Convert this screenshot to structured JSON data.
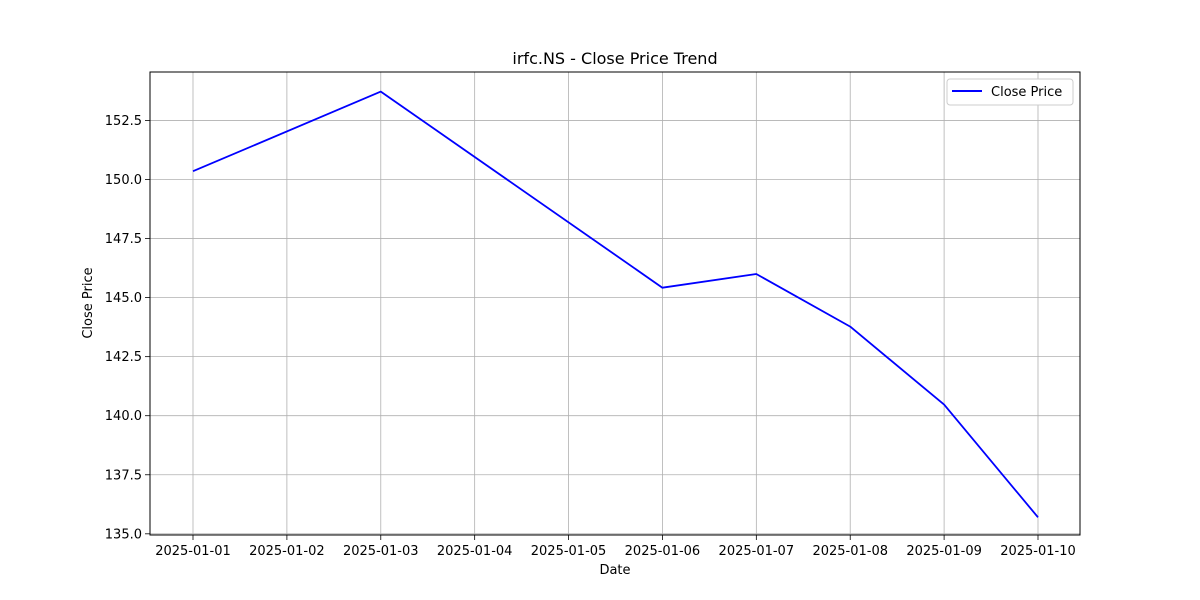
{
  "chart_data": {
    "type": "line",
    "title": "irfc.NS - Close Price Trend",
    "xlabel": "Date",
    "ylabel": "Close Price",
    "x": [
      "2025-01-01",
      "2025-01-02",
      "2025-01-03",
      "2025-01-04",
      "2025-01-05",
      "2025-01-06",
      "2025-01-07",
      "2025-01-08",
      "2025-01-09",
      "2025-01-10"
    ],
    "series": [
      {
        "name": "Close Price",
        "color": "#0000ff",
        "points": [
          {
            "x": "2025-01-01",
            "y": 150.35
          },
          {
            "x": "2025-01-03",
            "y": 153.72
          },
          {
            "x": "2025-01-06",
            "y": 145.42
          },
          {
            "x": "2025-01-07",
            "y": 146.0
          },
          {
            "x": "2025-01-08",
            "y": 143.77
          },
          {
            "x": "2025-01-09",
            "y": 140.47
          },
          {
            "x": "2025-01-10",
            "y": 135.7
          }
        ]
      }
    ],
    "ylim": [
      134.95,
      154.55
    ],
    "yticks": [
      "135.0",
      "137.5",
      "140.0",
      "142.5",
      "145.0",
      "147.5",
      "150.0",
      "152.5"
    ],
    "grid": true,
    "legend_position": "top-right"
  }
}
